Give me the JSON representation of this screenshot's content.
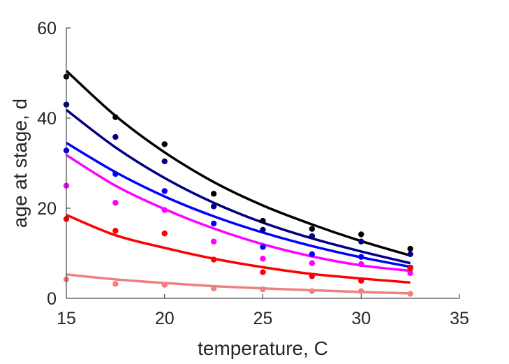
{
  "chart_data": {
    "type": "scatter",
    "title": "",
    "xlabel": "temperature, C",
    "ylabel": "age at stage, d",
    "xlim": [
      15,
      35
    ],
    "ylim": [
      0,
      60
    ],
    "xticks": [
      15,
      20,
      25,
      30,
      35
    ],
    "yticks": [
      0,
      20,
      40,
      60
    ],
    "grid": false,
    "legend": "none",
    "x": [
      15,
      17.5,
      20,
      22.5,
      25,
      27.5,
      30,
      32.5
    ],
    "series": [
      {
        "color": "#000000",
        "values": [
          49.2,
          40.2,
          34.2,
          23.2,
          17.2,
          15.4,
          14.2,
          11.0
        ],
        "fit": [
          50.5,
          40.5,
          32.4,
          25.8,
          20.6,
          16.4,
          12.7,
          9.5
        ]
      },
      {
        "color": "#000080",
        "values": [
          43.0,
          35.8,
          30.4,
          20.4,
          15.2,
          13.8,
          12.6,
          9.8
        ],
        "fit": [
          41.8,
          33.5,
          26.7,
          21.2,
          16.8,
          13.3,
          10.4,
          7.8
        ]
      },
      {
        "color": "#0000ff",
        "values": [
          32.8,
          27.6,
          23.8,
          16.6,
          11.4,
          9.8,
          9.2,
          6.8
        ],
        "fit": [
          34.5,
          28.0,
          22.6,
          18.2,
          14.6,
          11.6,
          9.1,
          7.0
        ]
      },
      {
        "color": "#ff00ff",
        "values": [
          25.0,
          21.2,
          19.6,
          12.6,
          8.8,
          7.8,
          7.6,
          5.6
        ],
        "fit": [
          31.8,
          25.0,
          19.8,
          15.5,
          12.0,
          9.3,
          7.3,
          6.1
        ]
      },
      {
        "color": "#ff0000",
        "values": [
          17.6,
          15.0,
          14.4,
          8.6,
          5.8,
          4.9,
          3.9,
          6.6
        ],
        "fit": [
          18.5,
          14.0,
          11.2,
          8.8,
          6.9,
          5.4,
          4.4,
          3.5
        ]
      },
      {
        "color": "#f08080",
        "values": [
          4.2,
          3.2,
          3.0,
          2.2,
          2.0,
          1.6,
          1.6,
          1.0
        ],
        "fit": [
          5.3,
          4.2,
          3.4,
          2.7,
          2.2,
          1.8,
          1.4,
          1.1
        ]
      }
    ]
  }
}
